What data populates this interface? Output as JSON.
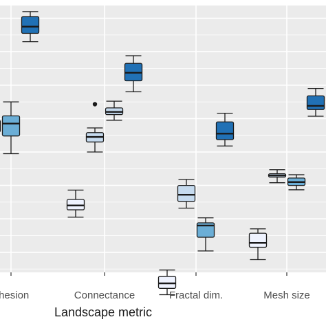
{
  "chart_data": {
    "type": "box",
    "xlabel": "Landscape metric",
    "ylabel": "",
    "categories": [
      "Cohesion",
      "Connectance",
      "Fractal dim.",
      "Mesh size"
    ],
    "visible_category_labels": [
      "ohesion",
      "Connectance",
      "Fractal dim.",
      "Mesh size"
    ],
    "ylim": [
      0,
      1
    ],
    "grid": true,
    "legend": "none",
    "palette": [
      "#eff3ff",
      "#c6dbef",
      "#6baed6",
      "#2171b5"
    ],
    "groups": [
      {
        "category": "Cohesion",
        "boxes": [
          {
            "fill_index": 1,
            "whisker_low": 0.525,
            "q1": 0.56,
            "median": 0.578,
            "q3": 0.595,
            "whisker_high": 0.64,
            "outliers": []
          },
          {
            "fill_index": 2,
            "whisker_low": 0.495,
            "q1": 0.548,
            "median": 0.585,
            "q3": 0.608,
            "whisker_high": 0.65,
            "outliers": []
          },
          {
            "fill_index": 3,
            "whisker_low": 0.83,
            "q1": 0.855,
            "median": 0.875,
            "q3": 0.905,
            "whisker_high": 0.92,
            "outliers": []
          }
        ]
      },
      {
        "category": "Connectance",
        "boxes": [
          {
            "fill_index": 0,
            "whisker_low": 0.305,
            "q1": 0.327,
            "median": 0.34,
            "q3": 0.358,
            "whisker_high": 0.386,
            "outliers": []
          },
          {
            "fill_index": 1,
            "whisker_low": 0.5,
            "q1": 0.53,
            "median": 0.545,
            "q3": 0.558,
            "whisker_high": 0.572,
            "outliers": [
              0.643
            ]
          },
          {
            "fill_index": 1,
            "whisker_low": 0.595,
            "q1": 0.612,
            "median": 0.62,
            "q3": 0.632,
            "whisker_high": 0.652,
            "outliers": []
          },
          {
            "fill_index": 3,
            "whisker_low": 0.68,
            "q1": 0.713,
            "median": 0.737,
            "q3": 0.765,
            "whisker_high": 0.788,
            "outliers": []
          }
        ]
      },
      {
        "category": "Fractal dim.",
        "boxes": [
          {
            "fill_index": 0,
            "whisker_low": 0.073,
            "q1": 0.092,
            "median": 0.107,
            "q3": 0.128,
            "whisker_high": 0.147,
            "outliers": []
          },
          {
            "fill_index": 1,
            "whisker_low": 0.332,
            "q1": 0.352,
            "median": 0.372,
            "q3": 0.4,
            "whisker_high": 0.418,
            "outliers": []
          },
          {
            "fill_index": 2,
            "whisker_low": 0.204,
            "q1": 0.245,
            "median": 0.28,
            "q3": 0.288,
            "whisker_high": 0.303,
            "outliers": []
          },
          {
            "fill_index": 3,
            "whisker_low": 0.518,
            "q1": 0.537,
            "median": 0.555,
            "q3": 0.59,
            "whisker_high": 0.616,
            "outliers": []
          }
        ]
      },
      {
        "category": "Mesh size",
        "boxes": [
          {
            "fill_index": 0,
            "whisker_low": 0.178,
            "q1": 0.215,
            "median": 0.228,
            "q3": 0.257,
            "whisker_high": 0.27,
            "outliers": []
          },
          {
            "fill_index": 1,
            "whisker_low": 0.408,
            "q1": 0.425,
            "median": 0.43,
            "q3": 0.435,
            "whisker_high": 0.447,
            "outliers": []
          },
          {
            "fill_index": 2,
            "whisker_low": 0.387,
            "q1": 0.4,
            "median": 0.41,
            "q3": 0.422,
            "whisker_high": 0.432,
            "outliers": []
          },
          {
            "fill_index": 3,
            "whisker_low": 0.607,
            "q1": 0.627,
            "median": 0.638,
            "q3": 0.668,
            "whisker_high": 0.69,
            "outliers": []
          }
        ]
      }
    ]
  }
}
